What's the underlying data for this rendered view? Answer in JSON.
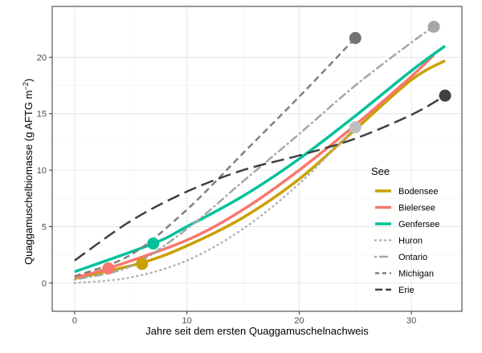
{
  "chart_data": {
    "type": "line",
    "xlabel": "Jahre seit dem ersten Quaggamuschelnachweis",
    "ylabel_main": "Quaggamuschelbiomasse (g AFTG m",
    "ylabel_sup": "−2",
    "ylabel_end": ")",
    "xlim": [
      -2,
      34.5
    ],
    "ylim": [
      -2.5,
      24.5
    ],
    "x_ticks": [
      0,
      10,
      20,
      30
    ],
    "y_ticks": [
      0,
      5,
      10,
      15,
      20
    ],
    "x_tick_labels": [
      "0",
      "10",
      "20",
      "30"
    ],
    "y_tick_labels": [
      "0",
      "5",
      "10",
      "15",
      "20"
    ],
    "grid": true,
    "legend_title": "See",
    "legend_position": "right",
    "series": [
      {
        "name": "Bodensee",
        "color": "#C9A000",
        "dash": "solid",
        "width": 3.5,
        "x": [
          0,
          6,
          10,
          15,
          20,
          25,
          30,
          33
        ],
        "y": [
          0.4,
          1.8,
          3.3,
          5.8,
          9.2,
          13.6,
          18.0,
          19.7
        ],
        "point": {
          "x": 6,
          "y": 1.7,
          "color": "#C9A000"
        }
      },
      {
        "name": "Bielersee",
        "color": "#F8766D",
        "dash": "solid",
        "width": 3.5,
        "x": [
          0,
          3,
          10,
          15,
          20,
          25,
          30,
          32
        ],
        "y": [
          0.5,
          1.3,
          3.8,
          6.5,
          10.0,
          14.0,
          18.3,
          20.2
        ],
        "point": {
          "x": 3,
          "y": 1.3,
          "color": "#F8766D"
        }
      },
      {
        "name": "Genfersee",
        "color": "#00C19A",
        "dash": "solid",
        "width": 3.5,
        "x": [
          0,
          7,
          10,
          15,
          20,
          25,
          30,
          33
        ],
        "y": [
          1.0,
          3.5,
          5.0,
          7.7,
          11.0,
          14.8,
          18.8,
          21.0
        ],
        "point": {
          "x": 7,
          "y": 3.5,
          "color": "#00C19A"
        }
      },
      {
        "name": "Huron",
        "color": "#B3B3B3",
        "dash": "dotted",
        "width": 2.5,
        "x": [
          0,
          5,
          10,
          15,
          20,
          25
        ],
        "y": [
          0.0,
          0.5,
          2.0,
          4.8,
          8.8,
          13.8
        ],
        "point": {
          "x": 25,
          "y": 13.8,
          "color": "#BFBFBF"
        }
      },
      {
        "name": "Ontario",
        "color": "#A6A6A6",
        "dash": "dotdash",
        "width": 2.5,
        "x": [
          0,
          5,
          10,
          15,
          20,
          25,
          30,
          32
        ],
        "y": [
          0.3,
          1.5,
          4.8,
          9.0,
          13.2,
          17.5,
          21.3,
          22.7
        ],
        "point": {
          "x": 32,
          "y": 22.7,
          "color": "#A6A6A6"
        }
      },
      {
        "name": "Michigan",
        "color": "#808080",
        "dash": "dashed",
        "width": 2.5,
        "x": [
          0,
          5,
          10,
          15,
          20,
          25
        ],
        "y": [
          0.6,
          2.5,
          6.5,
          11.5,
          16.5,
          21.7
        ],
        "point": {
          "x": 25,
          "y": 21.7,
          "color": "#737373"
        }
      },
      {
        "name": "Erie",
        "color": "#404040",
        "dash": "longdash",
        "width": 2.5,
        "x": [
          0,
          5,
          10,
          15,
          20,
          25,
          30,
          33
        ],
        "y": [
          2.0,
          5.5,
          8.1,
          10.0,
          11.3,
          12.8,
          14.9,
          16.6
        ],
        "point": {
          "x": 33,
          "y": 16.6,
          "color": "#404040"
        }
      }
    ]
  }
}
